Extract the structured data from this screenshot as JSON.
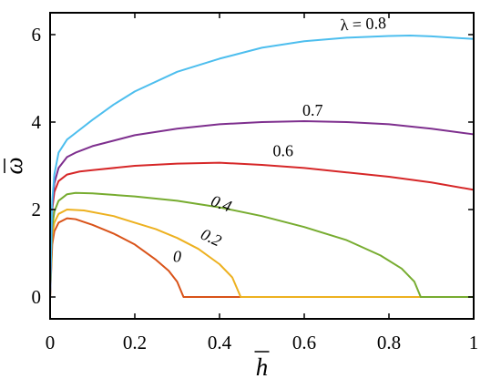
{
  "chart_data": {
    "type": "line",
    "title": "",
    "xlabel": "h",
    "ylabel": "ω",
    "xlim": [
      0,
      1
    ],
    "ylim": [
      -0.5,
      6.5
    ],
    "x_ticks": [
      0,
      0.2,
      0.4,
      0.6,
      0.8,
      1
    ],
    "x_tick_labels": [
      "0",
      "0.2",
      "0.4",
      "0.6",
      "0.8",
      "1"
    ],
    "y_ticks": [
      0,
      2,
      4,
      6
    ],
    "y_tick_labels": [
      "0",
      "2",
      "4",
      "6"
    ],
    "grid": false,
    "legend": "none",
    "series": [
      {
        "label": "0",
        "color": "#d95319",
        "points": [
          [
            0,
            0
          ],
          [
            0.005,
            1.2
          ],
          [
            0.01,
            1.5
          ],
          [
            0.02,
            1.7
          ],
          [
            0.04,
            1.8
          ],
          [
            0.06,
            1.78
          ],
          [
            0.1,
            1.65
          ],
          [
            0.15,
            1.45
          ],
          [
            0.2,
            1.2
          ],
          [
            0.25,
            0.85
          ],
          [
            0.28,
            0.6
          ],
          [
            0.3,
            0.35
          ],
          [
            0.315,
            0
          ],
          [
            0.5,
            0
          ],
          [
            1,
            0
          ]
        ]
      },
      {
        "label": "0.2",
        "color": "#edb120",
        "points": [
          [
            0,
            0
          ],
          [
            0.005,
            1.4
          ],
          [
            0.01,
            1.7
          ],
          [
            0.02,
            1.9
          ],
          [
            0.04,
            2.0
          ],
          [
            0.08,
            1.98
          ],
          [
            0.15,
            1.85
          ],
          [
            0.2,
            1.7
          ],
          [
            0.25,
            1.55
          ],
          [
            0.3,
            1.35
          ],
          [
            0.35,
            1.1
          ],
          [
            0.4,
            0.75
          ],
          [
            0.43,
            0.45
          ],
          [
            0.45,
            0
          ],
          [
            0.7,
            0
          ],
          [
            1,
            0
          ]
        ]
      },
      {
        "label": "0.4",
        "color": "#77ac30",
        "points": [
          [
            0,
            0
          ],
          [
            0.005,
            1.6
          ],
          [
            0.01,
            1.95
          ],
          [
            0.02,
            2.2
          ],
          [
            0.04,
            2.35
          ],
          [
            0.06,
            2.38
          ],
          [
            0.1,
            2.37
          ],
          [
            0.2,
            2.3
          ],
          [
            0.3,
            2.2
          ],
          [
            0.4,
            2.05
          ],
          [
            0.5,
            1.85
          ],
          [
            0.6,
            1.6
          ],
          [
            0.7,
            1.3
          ],
          [
            0.78,
            0.95
          ],
          [
            0.83,
            0.65
          ],
          [
            0.86,
            0.35
          ],
          [
            0.875,
            0
          ],
          [
            0.95,
            0
          ],
          [
            1,
            0
          ]
        ]
      },
      {
        "label": "0.6",
        "color": "#d62728",
        "points": [
          [
            0,
            0
          ],
          [
            0.005,
            2.0
          ],
          [
            0.01,
            2.4
          ],
          [
            0.02,
            2.65
          ],
          [
            0.04,
            2.8
          ],
          [
            0.07,
            2.87
          ],
          [
            0.1,
            2.9
          ],
          [
            0.2,
            3.0
          ],
          [
            0.3,
            3.05
          ],
          [
            0.4,
            3.07
          ],
          [
            0.5,
            3.02
          ],
          [
            0.6,
            2.95
          ],
          [
            0.7,
            2.85
          ],
          [
            0.8,
            2.75
          ],
          [
            0.9,
            2.62
          ],
          [
            1.0,
            2.45
          ]
        ]
      },
      {
        "label": "0.7",
        "color": "#7e2f8e",
        "points": [
          [
            0,
            0
          ],
          [
            0.005,
            2.1
          ],
          [
            0.01,
            2.6
          ],
          [
            0.02,
            2.95
          ],
          [
            0.04,
            3.2
          ],
          [
            0.06,
            3.3
          ],
          [
            0.1,
            3.45
          ],
          [
            0.2,
            3.7
          ],
          [
            0.3,
            3.85
          ],
          [
            0.4,
            3.95
          ],
          [
            0.5,
            4.0
          ],
          [
            0.6,
            4.02
          ],
          [
            0.7,
            4.0
          ],
          [
            0.8,
            3.95
          ],
          [
            0.9,
            3.85
          ],
          [
            1.0,
            3.72
          ]
        ]
      },
      {
        "label": "λ = 0.8",
        "color": "#4dbeee",
        "points": [
          [
            0,
            0
          ],
          [
            0.005,
            2.2
          ],
          [
            0.01,
            2.8
          ],
          [
            0.02,
            3.3
          ],
          [
            0.04,
            3.6
          ],
          [
            0.06,
            3.75
          ],
          [
            0.1,
            4.05
          ],
          [
            0.15,
            4.4
          ],
          [
            0.2,
            4.7
          ],
          [
            0.3,
            5.15
          ],
          [
            0.4,
            5.45
          ],
          [
            0.5,
            5.7
          ],
          [
            0.6,
            5.85
          ],
          [
            0.7,
            5.93
          ],
          [
            0.8,
            5.97
          ],
          [
            0.85,
            5.98
          ],
          [
            0.9,
            5.96
          ],
          [
            1.0,
            5.9
          ]
        ]
      }
    ],
    "annotations": [
      {
        "text": "λ = 0.8",
        "at": [
          0.74,
          6.12
        ],
        "rotate": -3,
        "italic": false
      },
      {
        "text": "0.7",
        "at": [
          0.62,
          4.15
        ],
        "rotate": 0,
        "italic": false
      },
      {
        "text": "0.6",
        "at": [
          0.55,
          3.22
        ],
        "rotate": 0,
        "italic": false
      },
      {
        "text": "0.4",
        "at": [
          0.4,
          2.02
        ],
        "rotate": 20,
        "italic": true
      },
      {
        "text": "0.2",
        "at": [
          0.375,
          1.25
        ],
        "rotate": 25,
        "italic": true
      },
      {
        "text": "0",
        "at": [
          0.3,
          0.8
        ],
        "rotate": 0,
        "italic": true
      }
    ]
  }
}
